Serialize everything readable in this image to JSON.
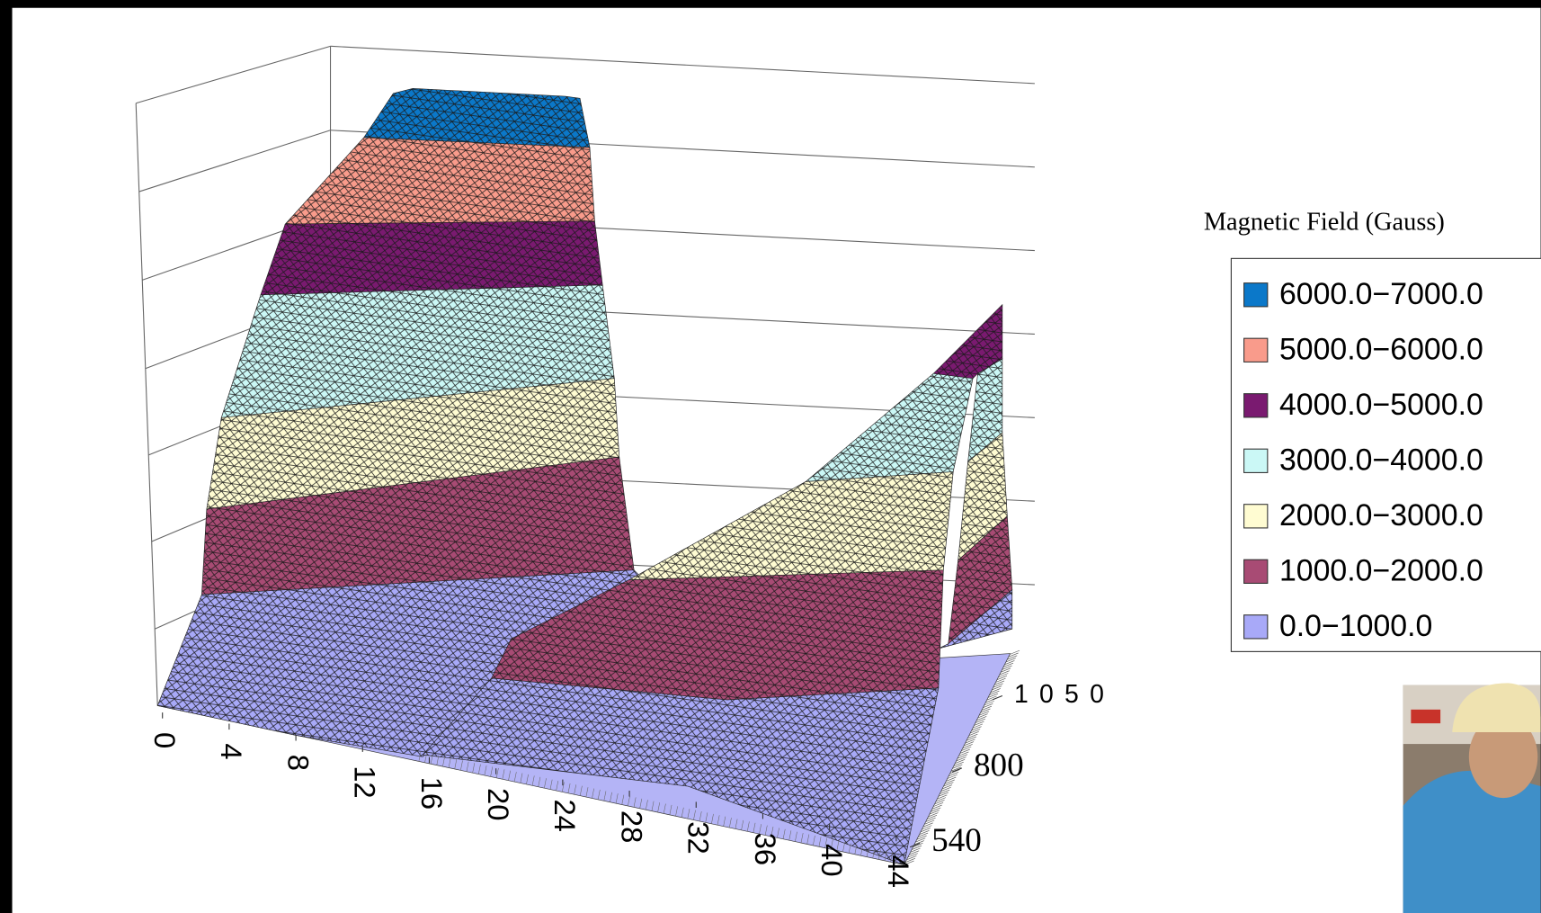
{
  "chart_data": {
    "type": "surface",
    "legend_title": "Magnetic Field (Gauss)",
    "series": [
      {
        "name": "6000.0−7000.0",
        "color": "#0b78c9"
      },
      {
        "name": "5000.0−6000.0",
        "color": "#f99b8b"
      },
      {
        "name": "4000.0−5000.0",
        "color": "#7a1a70"
      },
      {
        "name": "3000.0−4000.0",
        "color": "#cbf8f6"
      },
      {
        "name": "2000.0−3000.0",
        "color": "#fffcd2"
      },
      {
        "name": "1000.0−2000.0",
        "color": "#a84b74"
      },
      {
        "name": "0.0−1000.0",
        "color": "#a8a9f8"
      }
    ],
    "xlim": [
      0,
      44
    ],
    "xticks": [
      0,
      4,
      8,
      12,
      16,
      20,
      24,
      28,
      32,
      36,
      40,
      44
    ],
    "ylim": [
      540,
      1050
    ],
    "yticks": [
      540,
      800,
      {
        "value": 1050,
        "label": "1 0 5 0"
      }
    ]
  }
}
